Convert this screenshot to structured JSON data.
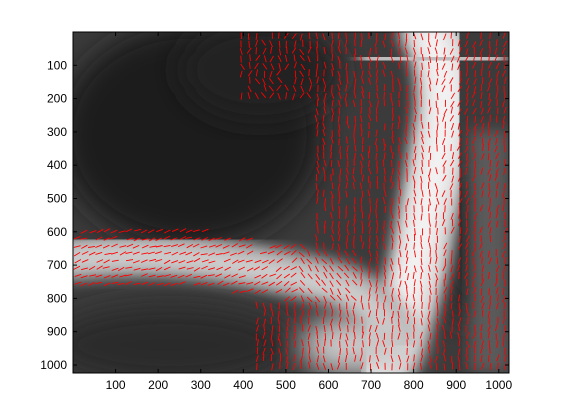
{
  "figure": {
    "background": "#ffffff",
    "image_name": "grayscale-fluorescence-image",
    "field_color": "#ff0000",
    "axis_color": "#000000"
  },
  "axes": {
    "x_ticks": [
      "100",
      "200",
      "300",
      "400",
      "500",
      "600",
      "700",
      "800",
      "900",
      "1000"
    ],
    "y_ticks": [
      "100",
      "200",
      "300",
      "400",
      "500",
      "600",
      "700",
      "800",
      "900",
      "1000"
    ],
    "x_range": [
      0,
      1024
    ],
    "y_range": [
      0,
      1024
    ],
    "y_direction": "reversed"
  }
}
